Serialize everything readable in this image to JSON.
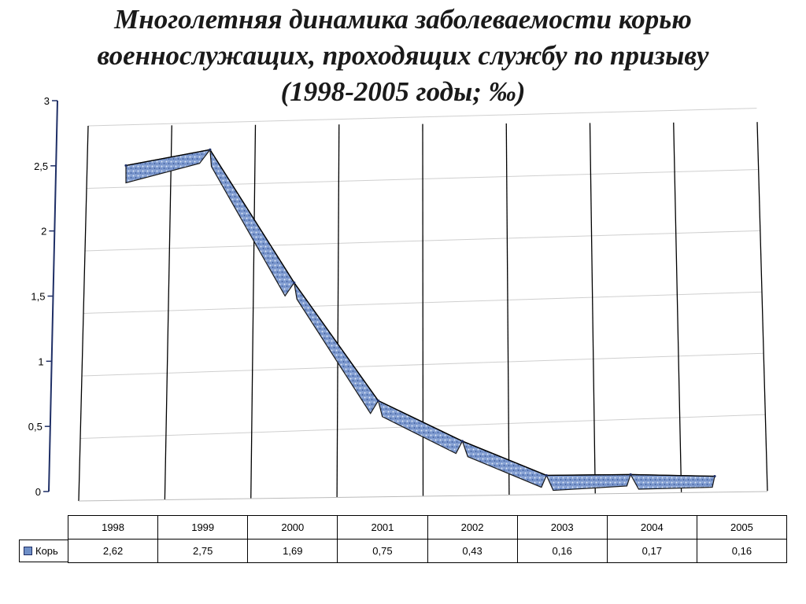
{
  "chart_data": {
    "type": "line",
    "title_lines": [
      "Многолетняя динамика заболеваемости корью",
      "военнослужащих, проходящих службу по призыву",
      "(1998-2005 годы; ‰)"
    ],
    "categories": [
      "1998",
      "1999",
      "2000",
      "2001",
      "2002",
      "2003",
      "2004",
      "2005"
    ],
    "series": [
      {
        "name": "Корь",
        "values": [
          2.62,
          2.75,
          1.69,
          0.75,
          0.43,
          0.16,
          0.17,
          0.16
        ],
        "value_labels": [
          "2,62",
          "2,75",
          "1,69",
          "0,75",
          "0,43",
          "0,16",
          "0,17",
          "0,16"
        ],
        "color": "#6f8fc7"
      }
    ],
    "y_ticks": [
      "0",
      "0,5",
      "1",
      "1,5",
      "2",
      "2,5",
      "3"
    ],
    "y_tick_values": [
      0,
      0.5,
      1,
      1.5,
      2,
      2.5,
      3
    ],
    "ylim": [
      0,
      3
    ],
    "grid": true,
    "data_table": true,
    "axis_color": "#1f2f66"
  }
}
